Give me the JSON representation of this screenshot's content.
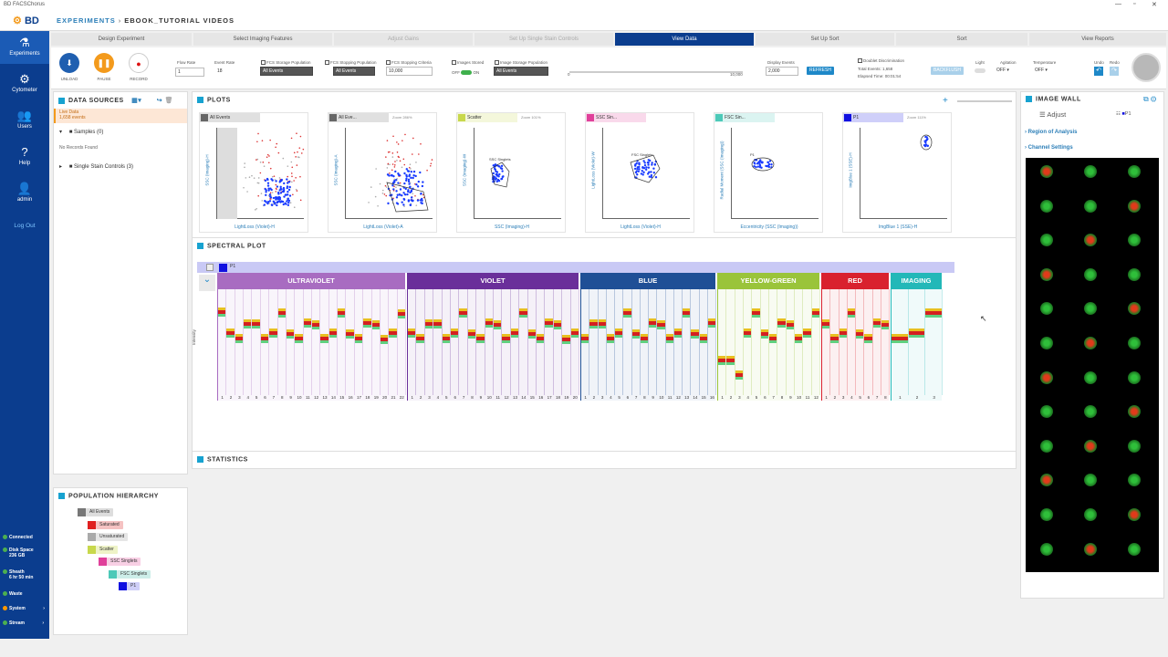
{
  "window": {
    "title": "BD FACSChorus"
  },
  "header": {
    "logo": "BD",
    "breadcrumb_root": "EXPERIMENTS",
    "breadcrumb_current": "EBOOK_TUTORIAL VIDEOS"
  },
  "sidebar": {
    "items": [
      {
        "label": "Experiments",
        "icon": "flask-icon"
      },
      {
        "label": "Cytometer",
        "icon": "gear-icon"
      },
      {
        "label": "Users",
        "icon": "users-icon"
      },
      {
        "label": "Help",
        "icon": "help-icon"
      },
      {
        "label": "admin",
        "icon": "user-icon"
      }
    ],
    "logout": "Log Out",
    "status": [
      {
        "label": "Connected",
        "color": "#4caf50"
      },
      {
        "label": "Disk Space",
        "value": "236 GB",
        "color": "#4caf50"
      },
      {
        "label": "Sheath",
        "value": "6 hr 50 min",
        "color": "#4caf50"
      },
      {
        "label": "Waste",
        "color": "#4caf50"
      },
      {
        "label": "System",
        "color": "#ff9800"
      },
      {
        "label": "Stream",
        "color": "#4caf50"
      }
    ]
  },
  "workflow": {
    "steps": [
      "Design Experiment",
      "Select Imaging Features",
      "Adjust Gains",
      "Set Up Single Stain Controls",
      "View Data",
      "Set Up Sort",
      "Sort",
      "View Reports"
    ]
  },
  "toolbar": {
    "unload": "UNLOAD",
    "pause": "PAUSE",
    "record": "RECORD",
    "flow_rate_label": "Flow Rate",
    "flow_rate": "1",
    "event_rate_label": "Event Rate",
    "event_rate": "18",
    "fcs_storage_label": "FCS Storage Population",
    "fcs_storage": "All Events",
    "fcs_stopping_label": "FCS Stopping Population",
    "fcs_stopping": "All Events",
    "fcs_criteria_label": "FCS Stopping Criteria",
    "fcs_criteria": "10,000",
    "images_stored_label": "Images Stored",
    "off": "OFF",
    "on": "ON",
    "image_storage_label": "Image Storage Population",
    "image_storage": "All Events",
    "slider_min": "0",
    "slider_max": "10,000",
    "display_events_label": "Display Events",
    "display_events": "2,000",
    "refresh": "REFRESH",
    "doublet_label": "Doublet Discrimination",
    "total_events": "Total Events: 1,658",
    "elapsed": "Elapsed Time: 00:01:54",
    "backflush": "BACKFLUSH",
    "light_label": "Light",
    "agitation_label": "Agitation",
    "agitation": "OFF",
    "temperature_label": "Temperature",
    "temperature": "OFF",
    "undo_label": "Undo",
    "redo_label": "Redo"
  },
  "data_sources": {
    "title": "DATA SOURCES",
    "live_data": "Live Data",
    "live_count": "1,658 events",
    "samples": "Samples (0)",
    "no_records": "No Records Found",
    "single_stain": "Single Stain Controls (3)"
  },
  "population_hierarchy": {
    "title": "POPULATION HIERARCHY",
    "items": [
      {
        "label": "All Events",
        "color": "#777777"
      },
      {
        "label": "Saturated",
        "color": "#e02020"
      },
      {
        "label": "Unsaturated",
        "color": "#aaaaaa"
      },
      {
        "label": "Scatter",
        "color": "#c8d84c"
      },
      {
        "label": "SSC Singlets",
        "color": "#e0409a"
      },
      {
        "label": "FSC Singlets",
        "color": "#4cc9b8"
      },
      {
        "label": "P1",
        "color": "#1010e0"
      }
    ]
  },
  "plots": {
    "title": "PLOTS",
    "items": [
      {
        "pop": "All Events",
        "color": "#666666",
        "zoom": "",
        "xlabel": "LightLoss (Violet)-H",
        "ylabel": "SSC (Imaging)-H",
        "gate": ""
      },
      {
        "pop": "All Eve...",
        "color": "#666666",
        "zoom": "Zoom 286%",
        "xlabel": "LightLoss (Violet)-A",
        "ylabel": "SSC (Imaging)-A",
        "gate": ""
      },
      {
        "pop": "Scatter",
        "color": "#c8d84c",
        "zoom": "Zoom 101%",
        "xlabel": "SSC (Imaging)-H",
        "ylabel": "SSC (Imaging)-W",
        "gate": "SSC Singlets"
      },
      {
        "pop": "SSC Sin...",
        "color": "#e0409a",
        "zoom": "",
        "xlabel": "LightLoss (Violet)-H",
        "ylabel": "LightLoss (Violet)-W",
        "gate": "FSC Singlets"
      },
      {
        "pop": "FSC Sin...",
        "color": "#4cc9b8",
        "zoom": "",
        "xlabel": "Eccentricity (SSC (Imaging))",
        "ylabel": "Radial Moment (SSC (Imaging))",
        "gate": "P1"
      },
      {
        "pop": "P1",
        "color": "#1010e0",
        "zoom": "Zoom 111%",
        "xlabel": "ImgBlue 1 (SSE)-H",
        "ylabel": "ImgBlue 1 (SSE)-H",
        "gate": ""
      }
    ]
  },
  "spectral": {
    "title": "SPECTRAL PLOT",
    "pop": "P1",
    "ylabel": "Intensity",
    "bands": [
      {
        "name": "ULTRAVIOLET",
        "color": "#a86cc1",
        "n": 22
      },
      {
        "name": "VIOLET",
        "color": "#6a2f9a",
        "n": 20
      },
      {
        "name": "BLUE",
        "color": "#1f4f96",
        "n": 16
      },
      {
        "name": "YELLOW-GREEN",
        "color": "#9ac43a",
        "n": 12
      },
      {
        "name": "RED",
        "color": "#d9212e",
        "n": 8
      },
      {
        "name": "IMAGING",
        "color": "#23b8b8",
        "n": 3
      }
    ]
  },
  "statistics": {
    "title": "STATISTICS"
  },
  "image_wall": {
    "title": "IMAGE WALL",
    "adjust": "Adjust",
    "pop": "P1",
    "region": "Region of Analysis",
    "channel": "Channel Settings"
  }
}
